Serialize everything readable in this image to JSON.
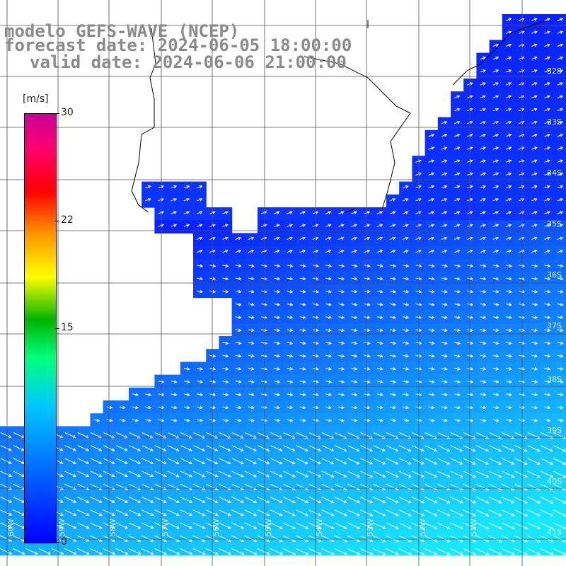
{
  "title": {
    "line1": "modelo GEFS-WAVE (NCEP)",
    "line2": "forecast date: 2024-06-05 18:00:00",
    "line3": "valid date: 2024-06-06 21:00:00"
  },
  "colorbar": {
    "unit": "[m/s]",
    "ticks": [
      "30",
      "22",
      "15",
      "0"
    ],
    "colors": [
      "#0000ff",
      "#00c8ff",
      "#00ff80",
      "#00b400",
      "#ffff00",
      "#ff9600",
      "#ff0000",
      "#c80096"
    ]
  },
  "lat_labels": [
    "32S",
    "33S",
    "34S",
    "35S",
    "36S",
    "37S",
    "38S",
    "39S",
    "40S",
    "41S"
  ],
  "lon_labels": [
    "60W",
    "59W",
    "58W",
    "57W",
    "56W",
    "55W",
    "54W",
    "53W",
    "52W",
    "51W"
  ],
  "colors": {
    "land": "#ffffff",
    "coast": "#000000",
    "grid": "#505050",
    "ocean_low": "#0a22ff",
    "ocean_high": "#18e8ff",
    "arrows": "#ffffff"
  }
}
